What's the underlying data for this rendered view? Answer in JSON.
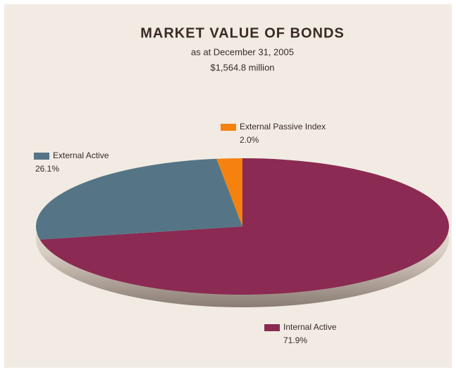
{
  "chart_data": {
    "type": "pie",
    "title": "MARKET VALUE OF BONDS",
    "subtitle": [
      "as at December 31, 2005",
      "$1,564.8 million"
    ],
    "categories": [
      "Internal Active",
      "External Active",
      "External Passive Index"
    ],
    "values": [
      71.9,
      26.1,
      2.0
    ],
    "value_labels": [
      "71.9%",
      "26.1%",
      "2.0%"
    ],
    "colors": [
      "#8b2a52",
      "#557586",
      "#f5820f"
    ]
  }
}
